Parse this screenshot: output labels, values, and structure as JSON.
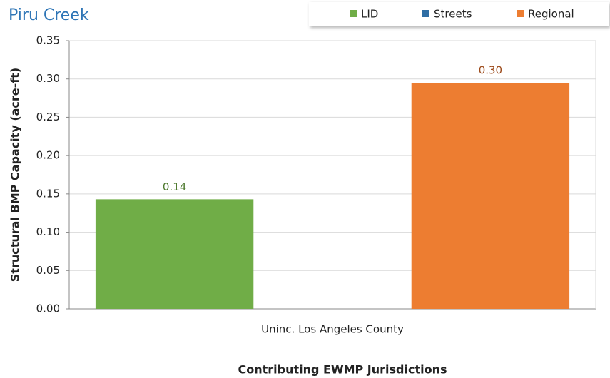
{
  "chart_data": {
    "type": "bar",
    "title": "Piru Creek",
    "y_label": "Structural BMP Capacity (acre-ft)",
    "x_label": "Contributing EWMP Jurisdictions",
    "categories": [
      "Uninc. Los Angeles County"
    ],
    "series": [
      {
        "name": "LID",
        "color": "#70ad47",
        "values": [
          0.143
        ],
        "value_labels": [
          "0.14"
        ],
        "label_color": "#4e7a2f"
      },
      {
        "name": "Streets",
        "color": "#2e6da4",
        "values": [
          0
        ]
      },
      {
        "name": "Regional",
        "color": "#ed7d31",
        "values": [
          0.295
        ],
        "value_labels": [
          "0.30"
        ],
        "label_color": "#9c4a1a"
      }
    ],
    "ylim": [
      0,
      0.35
    ],
    "yticks": [
      {
        "value": 0,
        "label": "0.00"
      },
      0.05,
      {
        "value": 0.1,
        "label": "0.10"
      },
      0.15,
      {
        "value": 0.2,
        "label": "0.20"
      },
      0.25,
      {
        "value": 0.3,
        "label": "0.30"
      },
      0.35
    ],
    "grid": true,
    "legend": "top-right"
  }
}
